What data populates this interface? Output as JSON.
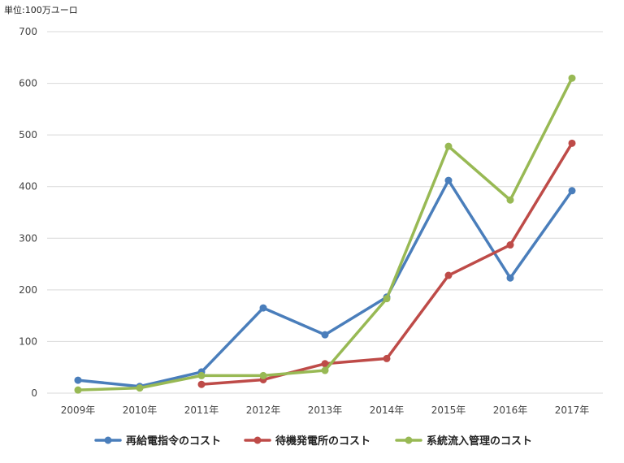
{
  "chart_data": {
    "type": "line",
    "unit_label": "単位:100万ユーロ",
    "categories": [
      "2009年",
      "2010年",
      "2011年",
      "2012年",
      "2013年",
      "2014年",
      "2015年",
      "2016年",
      "2017年"
    ],
    "ylim": [
      0,
      700
    ],
    "yticks": [
      0,
      100,
      200,
      300,
      400,
      500,
      600,
      700
    ],
    "grid": true,
    "legend_position": "bottom",
    "series": [
      {
        "name": "再給電指令のコスト",
        "color": "#4a7ebb",
        "values": [
          25,
          13,
          41,
          165,
          113,
          186,
          412,
          223,
          392
        ]
      },
      {
        "name": "待機発電所のコスト",
        "color": "#be4b48",
        "values": [
          null,
          null,
          17,
          26,
          57,
          67,
          228,
          287,
          484
        ]
      },
      {
        "name": "系統流入管理のコスト",
        "color": "#98b954",
        "values": [
          6,
          10,
          34,
          34,
          44,
          183,
          478,
          374,
          610
        ]
      }
    ]
  }
}
